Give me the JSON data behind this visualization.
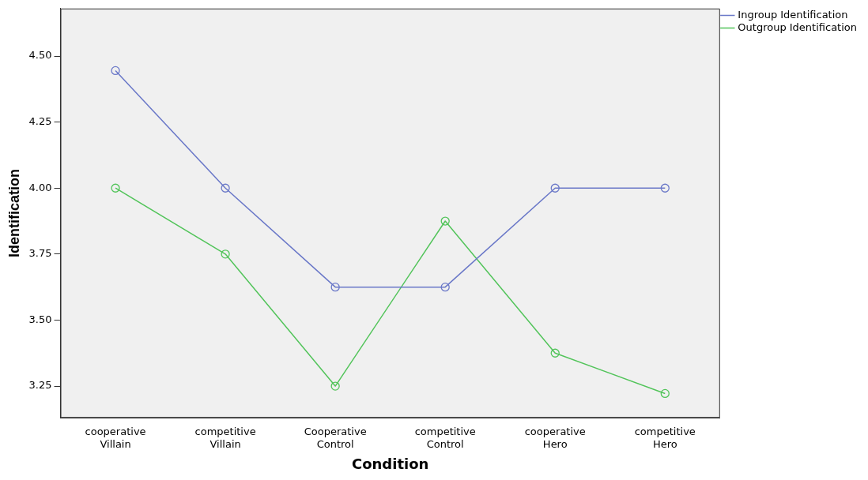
{
  "chart_data": {
    "type": "line",
    "xlabel": "Condition",
    "ylabel": "Identification",
    "categories": [
      "cooperative Villain",
      "competitive Villain",
      "Cooperative Control",
      "competitive Control",
      "cooperative Hero",
      "competitive Hero"
    ],
    "series": [
      {
        "name": "Ingroup Identification",
        "color": "#6a78c8",
        "values": [
          4.445,
          4.0,
          3.625,
          3.625,
          4.0,
          4.0
        ]
      },
      {
        "name": "Outgroup Identification",
        "color": "#52c45a",
        "values": [
          4.0,
          3.75,
          3.25,
          3.875,
          3.375,
          3.222
        ]
      }
    ],
    "ylim": [
      3.13,
      4.68
    ],
    "yticks": [
      {
        "value": 3.25,
        "label": "3.25"
      },
      {
        "value": 3.5,
        "label": "3.50"
      },
      {
        "value": 3.75,
        "label": "3.75"
      },
      {
        "value": 4.0,
        "label": "4.00"
      },
      {
        "value": 4.25,
        "label": "4.25"
      },
      {
        "value": 4.5,
        "label": "4.50"
      }
    ],
    "grid": false,
    "legend": "top right",
    "marker": "circle",
    "line_style": "solid"
  }
}
